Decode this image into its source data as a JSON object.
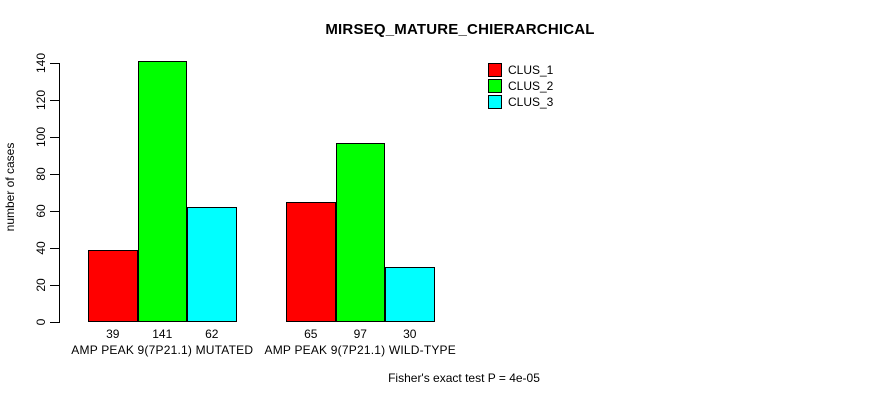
{
  "chart_data": {
    "type": "bar",
    "title": "MIRSEQ_MATURE_CHIERARCHICAL",
    "ylabel": "number of cases",
    "xlabel": "",
    "categories": [
      "AMP PEAK 9(7P21.1) MUTATED",
      "AMP PEAK 9(7P21.1) WILD-TYPE"
    ],
    "series": [
      {
        "name": "CLUS_1",
        "color": "#ff0000",
        "values": [
          39,
          65
        ]
      },
      {
        "name": "CLUS_2",
        "color": "#00ff00",
        "values": [
          141,
          97
        ]
      },
      {
        "name": "CLUS_3",
        "color": "#00ffff",
        "values": [
          62,
          30
        ]
      }
    ],
    "ylim": [
      0,
      140
    ],
    "yticks": [
      0,
      20,
      40,
      60,
      80,
      100,
      120,
      140
    ],
    "bar_value_labels": [
      [
        39,
        141,
        62
      ],
      [
        65,
        97,
        30
      ]
    ],
    "legend_position": "top-right",
    "grid": false,
    "annotation": "Fisher's exact test P = 4e-05"
  },
  "colors": {
    "background": "#ffffff",
    "axis": "#000000",
    "bar_border": "#000000",
    "text": "#000000"
  }
}
